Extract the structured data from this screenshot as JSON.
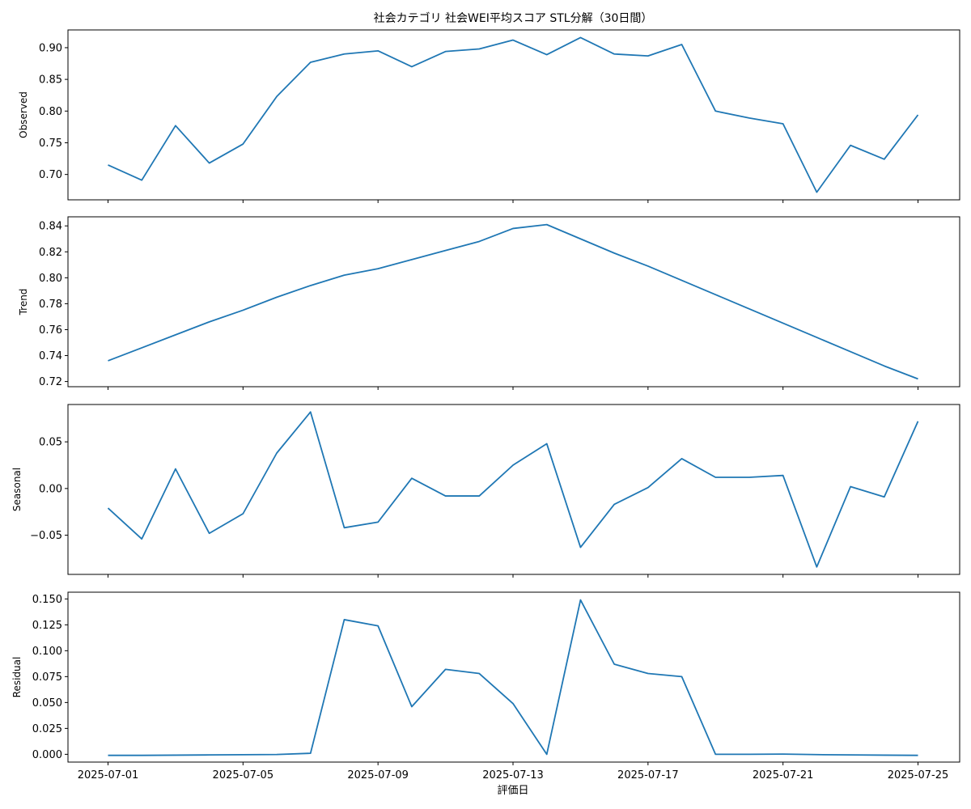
{
  "chart_data": {
    "type": "line",
    "title": "社会カテゴリ 社会WEI平均スコア STL分解（30日間）",
    "xlabel": "評価日",
    "x": [
      "2025-07-01",
      "2025-07-02",
      "2025-07-03",
      "2025-07-04",
      "2025-07-05",
      "2025-07-06",
      "2025-07-07",
      "2025-07-08",
      "2025-07-09",
      "2025-07-10",
      "2025-07-11",
      "2025-07-12",
      "2025-07-13",
      "2025-07-14",
      "2025-07-15",
      "2025-07-16",
      "2025-07-17",
      "2025-07-18",
      "2025-07-19",
      "2025-07-20",
      "2025-07-21",
      "2025-07-22",
      "2025-07-23",
      "2025-07-24",
      "2025-07-25"
    ],
    "x_ticks": [
      "2025-07-01",
      "2025-07-05",
      "2025-07-09",
      "2025-07-13",
      "2025-07-17",
      "2025-07-21",
      "2025-07-25"
    ],
    "line_color": "#1f77b4",
    "panels": [
      {
        "name": "Observed",
        "ylabel": "Observed",
        "ylim": [
          0.66,
          0.928
        ],
        "yticks": [
          0.7,
          0.75,
          0.8,
          0.85,
          0.9
        ],
        "tick_decimals": 2,
        "values": [
          0.715,
          0.691,
          0.777,
          0.718,
          0.748,
          0.823,
          0.877,
          0.89,
          0.895,
          0.87,
          0.894,
          0.898,
          0.912,
          0.889,
          0.916,
          0.89,
          0.887,
          0.905,
          0.8,
          0.789,
          0.78,
          0.672,
          0.746,
          0.724,
          0.794
        ]
      },
      {
        "name": "Trend",
        "ylabel": "Trend",
        "ylim": [
          0.716,
          0.847
        ],
        "yticks": [
          0.72,
          0.74,
          0.76,
          0.78,
          0.8,
          0.82,
          0.84
        ],
        "tick_decimals": 2,
        "values": [
          0.736,
          0.746,
          0.756,
          0.766,
          0.775,
          0.785,
          0.794,
          0.802,
          0.807,
          0.814,
          0.821,
          0.828,
          0.838,
          0.841,
          0.83,
          0.819,
          0.809,
          0.798,
          0.787,
          0.776,
          0.765,
          0.754,
          0.743,
          0.732,
          0.722
        ]
      },
      {
        "name": "Seasonal",
        "ylabel": "Seasonal",
        "ylim": [
          -0.092,
          0.09
        ],
        "yticks": [
          -0.05,
          0.0,
          0.05
        ],
        "tick_decimals": 2,
        "values": [
          -0.021,
          -0.054,
          0.021,
          -0.048,
          -0.027,
          0.038,
          0.082,
          -0.042,
          -0.036,
          0.011,
          -0.008,
          -0.008,
          0.025,
          0.048,
          -0.063,
          -0.017,
          0.001,
          0.032,
          0.012,
          0.012,
          0.014,
          -0.084,
          0.002,
          -0.009,
          0.072
        ]
      },
      {
        "name": "Residual",
        "ylabel": "Residual",
        "ylim": [
          -0.0075,
          0.1565
        ],
        "yticks": [
          0.0,
          0.025,
          0.05,
          0.075,
          0.1,
          0.125,
          0.15
        ],
        "tick_decimals": 3,
        "values": [
          -0.001,
          -0.001,
          -0.0008,
          -0.0006,
          -0.0004,
          -0.0002,
          0.001,
          0.13,
          0.124,
          0.046,
          0.082,
          0.078,
          0.049,
          0.0,
          0.149,
          0.087,
          0.078,
          0.075,
          0.0,
          0.0,
          0.0002,
          -0.0003,
          -0.0006,
          -0.0008,
          -0.001
        ]
      }
    ]
  }
}
